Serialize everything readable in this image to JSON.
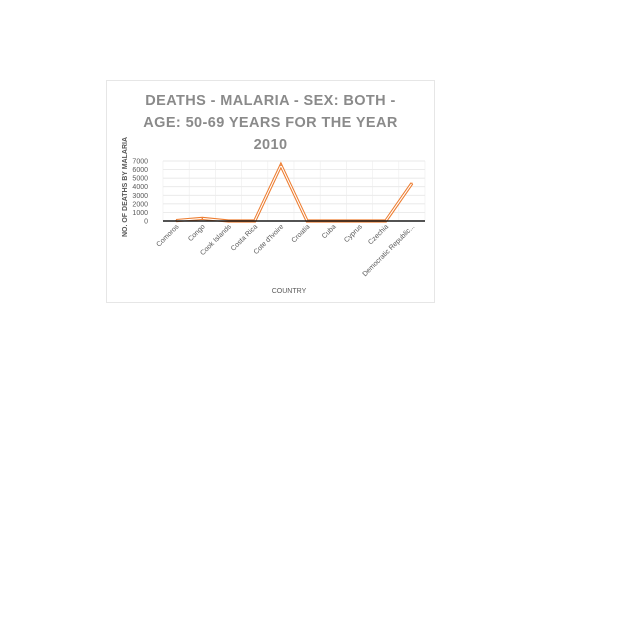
{
  "chart_data": {
    "type": "line",
    "title": "DEATHS - MALARIA - SEX: BOTH - AGE: 50-69 YEARS FOR THE YEAR 2010",
    "xlabel": "COUNTRY",
    "ylabel": "NO. OF DEATHS BY MALARIA",
    "categories": [
      "Comoros",
      "Congo",
      "Cook Islands",
      "Costa Rica",
      "Cote d'Ivoire",
      "Croatia",
      "Cuba",
      "Cyprus",
      "Czechia",
      "Democratic Republic..."
    ],
    "values": [
      50,
      300,
      0,
      0,
      6500,
      0,
      0,
      0,
      0,
      4400
    ],
    "ylim": [
      0,
      7000
    ],
    "yticks": [
      "0",
      "1000",
      "2000",
      "3000",
      "4000",
      "5000",
      "6000",
      "7000"
    ],
    "grid": true,
    "line_color": "#ed7d31"
  }
}
